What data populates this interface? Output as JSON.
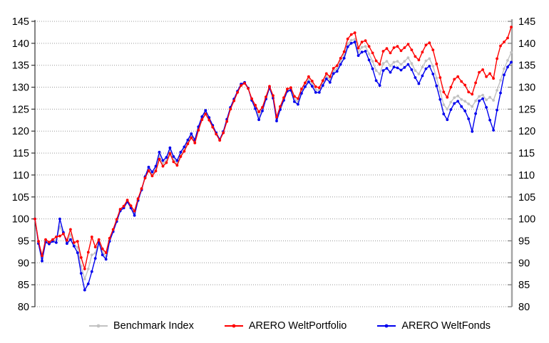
{
  "chart_data": {
    "type": "line",
    "title": "",
    "xlabel": "",
    "ylabel": "",
    "x_axis": {
      "tick_labels_visible": false
    },
    "y_axis": {
      "min": 80,
      "max": 145,
      "tick_step": 5,
      "ticks": [
        145,
        140,
        135,
        130,
        125,
        120,
        115,
        110,
        105,
        100,
        95,
        90,
        85,
        80
      ],
      "sides": [
        "left",
        "right"
      ]
    },
    "grid": {
      "horizontal": true,
      "vertical": false,
      "style": "dotted",
      "color": "#999999"
    },
    "legend": {
      "position": "bottom"
    },
    "axis_colors": {
      "left_axis": "#333333",
      "right_axis": "#a3a3a3",
      "tick_label": "#000000"
    },
    "series": [
      {
        "name": "Benchmark Index",
        "color": "#c2c2c2",
        "values": [
          100.0,
          94.7,
          90.9,
          95.0,
          94.5,
          95.1,
          95.2,
          98.2,
          96.7,
          94.7,
          96.4,
          94.2,
          93.5,
          89.2,
          86.3,
          88.6,
          91.8,
          92.2,
          95.0,
          92.5,
          91.5,
          95.2,
          97.3,
          99.6,
          102.0,
          102.7,
          104.1,
          102.7,
          101.3,
          104.4,
          106.7,
          109.4,
          111.3,
          110.2,
          111.4,
          114.3,
          112.6,
          113.3,
          115.5,
          113.5,
          112.7,
          114.6,
          115.8,
          117.5,
          118.9,
          117.6,
          120.5,
          122.9,
          124.2,
          122.8,
          121.1,
          119.4,
          118.0,
          119.7,
          122.4,
          125.2,
          127.1,
          128.9,
          130.5,
          131.0,
          129.7,
          127.2,
          125.5,
          123.5,
          125.0,
          127.5,
          130.0,
          127.8,
          122.7,
          125.2,
          127.3,
          129.3,
          129.6,
          127.3,
          126.7,
          129.1,
          130.5,
          131.8,
          130.8,
          129.4,
          129.3,
          130.9,
          132.5,
          131.7,
          133.7,
          134.2,
          135.9,
          137.3,
          139.9,
          140.7,
          140.9,
          138.0,
          139.1,
          139.3,
          137.6,
          135.9,
          133.8,
          133.0,
          135.4,
          135.9,
          134.9,
          135.7,
          135.9,
          135.2,
          135.9,
          136.7,
          135.4,
          133.8,
          133.0,
          134.6,
          136.0,
          136.5,
          134.8,
          132.1,
          129.1,
          126.0,
          125.0,
          126.6,
          127.6,
          128.0,
          127.2,
          126.8,
          126.2,
          125.6,
          126.9,
          127.9,
          128.2,
          127.1,
          127.7,
          127.0,
          129.3,
          131.6,
          134.2,
          136.1,
          137.9
        ]
      },
      {
        "name": "ARERO WeltPortfolio",
        "color": "#ff0000",
        "values": [
          100.0,
          94.9,
          91.6,
          95.3,
          94.7,
          95.3,
          95.9,
          96.1,
          96.6,
          95.1,
          97.6,
          94.6,
          94.9,
          91.2,
          88.6,
          92.4,
          95.9,
          93.6,
          95.3,
          93.2,
          92.3,
          95.6,
          97.6,
          99.9,
          102.2,
          102.9,
          104.3,
          103.0,
          101.8,
          104.6,
          106.9,
          109.3,
          111.0,
          109.8,
          110.9,
          113.6,
          112.0,
          112.8,
          114.9,
          113.0,
          112.2,
          114.2,
          115.4,
          117.1,
          118.5,
          117.3,
          120.2,
          122.6,
          123.9,
          122.5,
          120.9,
          119.3,
          117.9,
          119.6,
          122.2,
          125.0,
          126.9,
          128.8,
          130.4,
          130.9,
          129.7,
          127.4,
          125.9,
          124.4,
          125.4,
          127.8,
          130.2,
          128.1,
          123.2,
          125.6,
          127.6,
          129.6,
          129.9,
          127.9,
          127.4,
          129.6,
          131.0,
          132.4,
          131.4,
          130.1,
          129.9,
          131.5,
          133.1,
          132.4,
          134.3,
          134.9,
          136.6,
          138.1,
          141.0,
          142.0,
          142.4,
          138.9,
          140.3,
          140.6,
          139.3,
          137.8,
          136.0,
          135.2,
          138.2,
          138.8,
          137.8,
          139.0,
          139.3,
          138.3,
          139.0,
          139.8,
          138.5,
          137.0,
          136.2,
          138.0,
          139.6,
          140.1,
          138.5,
          135.3,
          132.2,
          128.9,
          127.7,
          130.0,
          131.8,
          132.4,
          131.3,
          130.5,
          128.9,
          128.4,
          131.0,
          133.4,
          134.0,
          132.4,
          133.1,
          132.0,
          136.5,
          139.4,
          140.3,
          141.2,
          143.7
        ]
      },
      {
        "name": "ARERO WeltFonds",
        "color": "#0000ee",
        "values": [
          100.0,
          94.4,
          90.4,
          94.7,
          94.3,
          94.9,
          94.6,
          100.0,
          96.9,
          94.4,
          95.3,
          93.8,
          92.3,
          87.6,
          83.8,
          85.2,
          88.0,
          91.0,
          94.7,
          91.8,
          90.8,
          94.9,
          97.1,
          99.4,
          101.8,
          102.5,
          103.9,
          102.5,
          100.8,
          104.2,
          106.6,
          109.6,
          111.8,
          110.7,
          112.0,
          115.2,
          113.3,
          114.0,
          116.2,
          114.2,
          113.3,
          115.2,
          116.4,
          118.0,
          119.4,
          118.0,
          121.0,
          123.3,
          124.7,
          123.1,
          121.3,
          119.6,
          118.1,
          119.9,
          122.7,
          125.4,
          127.3,
          129.1,
          130.7,
          131.1,
          129.8,
          127.0,
          125.1,
          122.6,
          124.6,
          127.3,
          129.9,
          127.5,
          122.3,
          124.9,
          127.0,
          129.1,
          129.3,
          126.7,
          126.1,
          128.6,
          130.1,
          131.2,
          130.2,
          128.8,
          128.8,
          130.4,
          131.9,
          131.1,
          133.1,
          133.6,
          135.2,
          136.6,
          139.2,
          140.0,
          140.3,
          137.2,
          138.0,
          138.2,
          136.2,
          134.2,
          131.5,
          130.4,
          133.8,
          134.3,
          133.4,
          134.6,
          134.4,
          133.9,
          134.5,
          135.2,
          134.0,
          132.2,
          130.8,
          132.6,
          134.2,
          134.8,
          133.0,
          130.3,
          127.2,
          123.9,
          122.6,
          124.9,
          126.3,
          126.8,
          125.6,
          124.6,
          122.8,
          119.9,
          124.0,
          126.9,
          127.4,
          125.4,
          122.5,
          120.2,
          124.8,
          128.7,
          132.8,
          134.6,
          135.7
        ]
      }
    ]
  }
}
